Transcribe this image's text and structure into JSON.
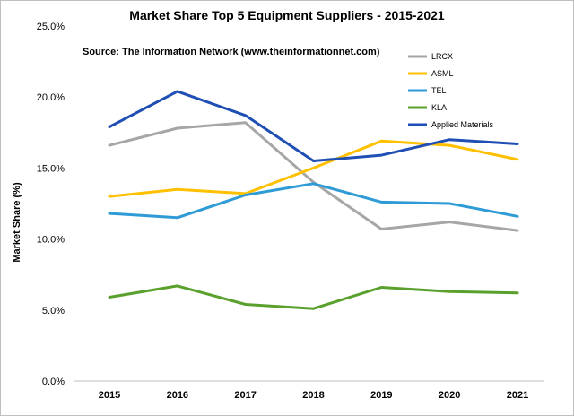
{
  "chart_data": {
    "type": "line",
    "title": "Market Share Top 5 Equipment Suppliers - 2015-2021",
    "subtitle": "Source: The Information Network (www.theinformationnet.com)",
    "xlabel": "",
    "ylabel": "Market Share (%)",
    "ylim": [
      0,
      25
    ],
    "y_ticks": [
      "0.0%",
      "5.0%",
      "10.0%",
      "15.0%",
      "20.0%",
      "25.0%"
    ],
    "y_tick_values": [
      0,
      5,
      10,
      15,
      20,
      25
    ],
    "categories": [
      "2015",
      "2016",
      "2017",
      "2018",
      "2019",
      "2020",
      "2021"
    ],
    "grid": false,
    "legend_position": "top-right",
    "series": [
      {
        "name": "LRCX",
        "color": "#a6a6a6",
        "values": [
          16.6,
          17.8,
          18.2,
          14.0,
          10.7,
          11.2,
          10.6
        ]
      },
      {
        "name": "ASML",
        "color": "#ffc000",
        "values": [
          13.0,
          13.5,
          13.2,
          15.0,
          16.9,
          16.6,
          15.6
        ]
      },
      {
        "name": "TEL",
        "color": "#2e9bd6",
        "values": [
          11.8,
          11.5,
          13.1,
          13.9,
          12.6,
          12.5,
          11.6
        ]
      },
      {
        "name": "KLA",
        "color": "#5aa02c",
        "values": [
          5.9,
          6.7,
          5.4,
          5.1,
          6.6,
          6.3,
          6.2
        ]
      },
      {
        "name": "Applied Materials",
        "color": "#1f4fb4",
        "values": [
          17.9,
          20.4,
          18.7,
          15.5,
          15.9,
          17.0,
          16.7
        ]
      }
    ]
  }
}
